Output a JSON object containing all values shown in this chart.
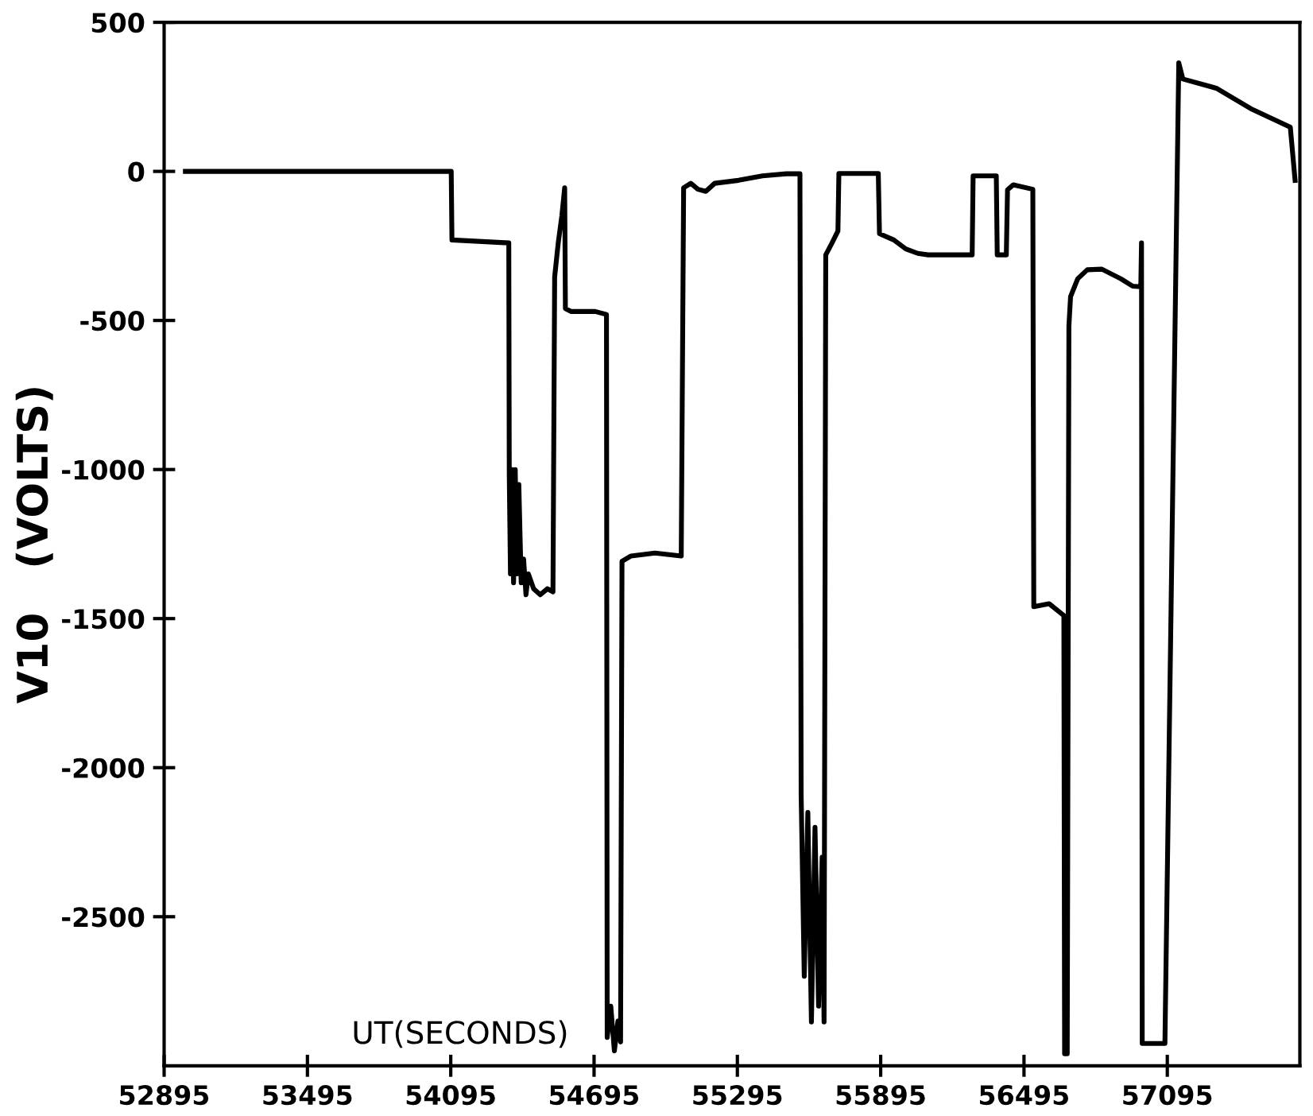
{
  "chart_data": {
    "type": "line",
    "ylabel": "V10   (VOLTS)",
    "annotations": [
      "UT(SECONDS)"
    ],
    "xlim": [
      52895,
      57650
    ],
    "ylim": [
      -3000,
      500
    ],
    "xticks": [
      52895,
      53495,
      54095,
      54695,
      55295,
      55895,
      56495,
      57095
    ],
    "yticks": [
      500,
      0,
      -500,
      -1000,
      -1500,
      -2000,
      -2500
    ],
    "grid": false,
    "legend": false,
    "marker": "none",
    "line_style": "solid",
    "series": [
      {
        "color": "#000000",
        "x": [
          52984,
          54097,
          54100,
          54338,
          54340,
          54345,
          54352,
          54358,
          54365,
          54372,
          54380,
          54390,
          54400,
          54410,
          54420,
          54442,
          54470,
          54500,
          54523,
          54530,
          54545,
          54560,
          54572,
          54575,
          54600,
          54700,
          54747,
          54750,
          54765,
          54780,
          54795,
          54806,
          54812,
          54850,
          54950,
          55060,
          55070,
          55100,
          55130,
          55163,
          55200,
          55300,
          55400,
          55500,
          55557,
          55562,
          55575,
          55590,
          55605,
          55620,
          55635,
          55650,
          55658,
          55665,
          55690,
          55716,
          55720,
          55800,
          55885,
          55890,
          55950,
          56000,
          56050,
          56093,
          56200,
          56278,
          56282,
          56379,
          56383,
          56421,
          56426,
          56450,
          56532,
          56536,
          56600,
          56662,
          56665,
          56676,
          56683,
          56690,
          56720,
          56760,
          56821,
          56900,
          56950,
          56984,
          56987,
          56990,
          57085,
          57143,
          57160,
          57300,
          57450,
          57610,
          57630
        ],
        "values": [
          0,
          0,
          -230,
          -240,
          -1020,
          -1350,
          -1000,
          -1380,
          -1000,
          -1350,
          -1050,
          -1380,
          -1300,
          -1420,
          -1350,
          -1400,
          -1420,
          -1400,
          -1410,
          -354,
          -240,
          -150,
          -55,
          -460,
          -470,
          -470,
          -480,
          -2905,
          -2800,
          -2950,
          -2850,
          -2920,
          -1308,
          -1290,
          -1280,
          -1290,
          -55,
          -40,
          -60,
          -67,
          -40,
          -30,
          -15,
          -8,
          -8,
          -2091,
          -2700,
          -2150,
          -2853,
          -2200,
          -2800,
          -2300,
          -2853,
          -280,
          -242,
          -200,
          -7,
          -7,
          -7,
          -209,
          -230,
          -260,
          -275,
          -280,
          -280,
          -280,
          -15,
          -15,
          -280,
          -280,
          -62,
          -45,
          -60,
          -1460,
          -1450,
          -1490,
          -2960,
          -2960,
          -519,
          -420,
          -360,
          -330,
          -328,
          -360,
          -385,
          -387,
          -240,
          -2925,
          -2925,
          364,
          310,
          279,
          208,
          148,
          -30
        ]
      }
    ]
  }
}
